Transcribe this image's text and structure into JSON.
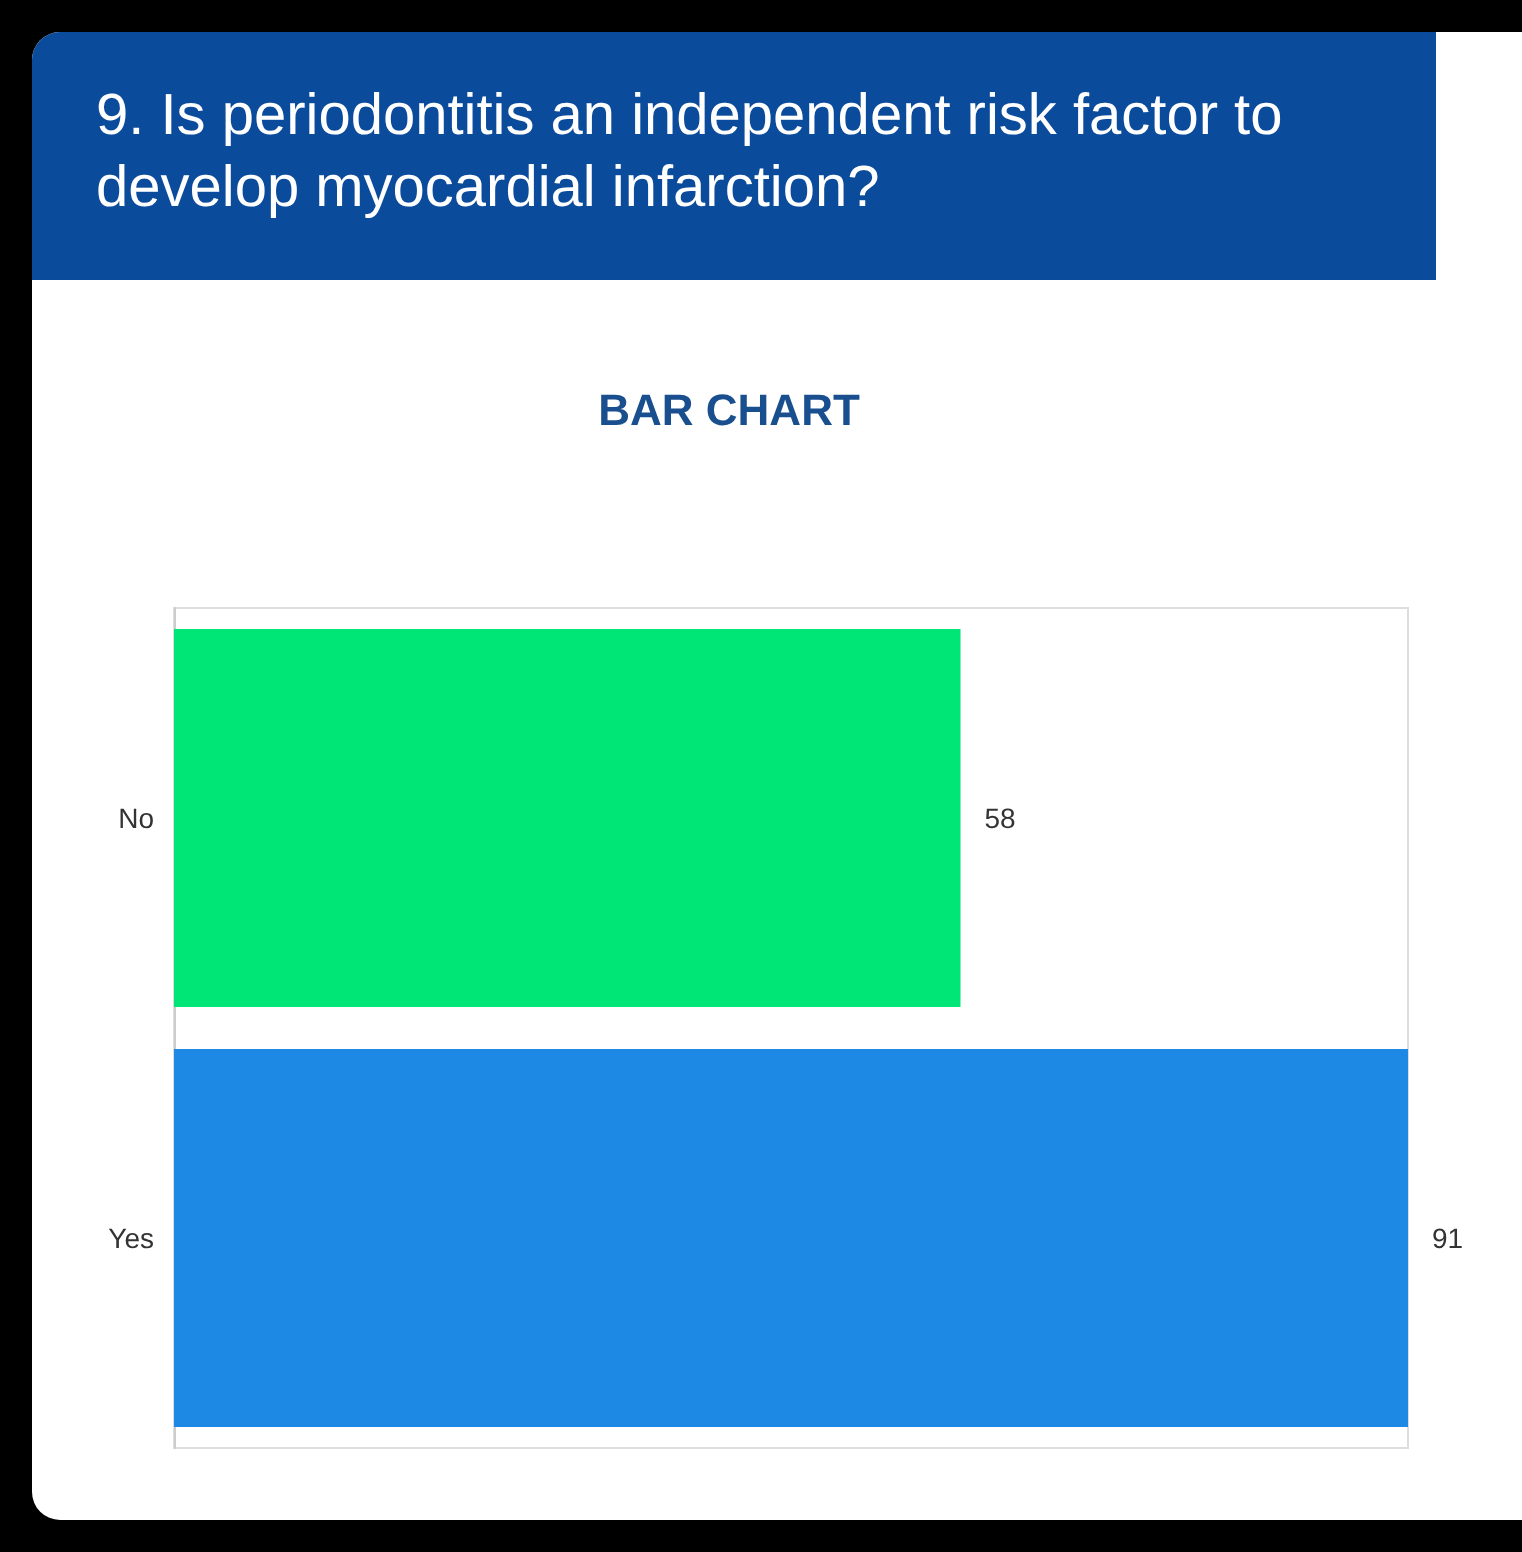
{
  "chart_data": {
    "type": "bar",
    "orientation": "horizontal",
    "title": "9. Is periodontitis an independent risk factor to develop myocardial infarction?",
    "subtitle": "BAR CHART",
    "categories": [
      "No",
      "Yes"
    ],
    "values": [
      58,
      91
    ],
    "colors": [
      "#00e676",
      "#1e88e5"
    ],
    "data_labels": true,
    "tick_labels": "y",
    "grid": false
  }
}
